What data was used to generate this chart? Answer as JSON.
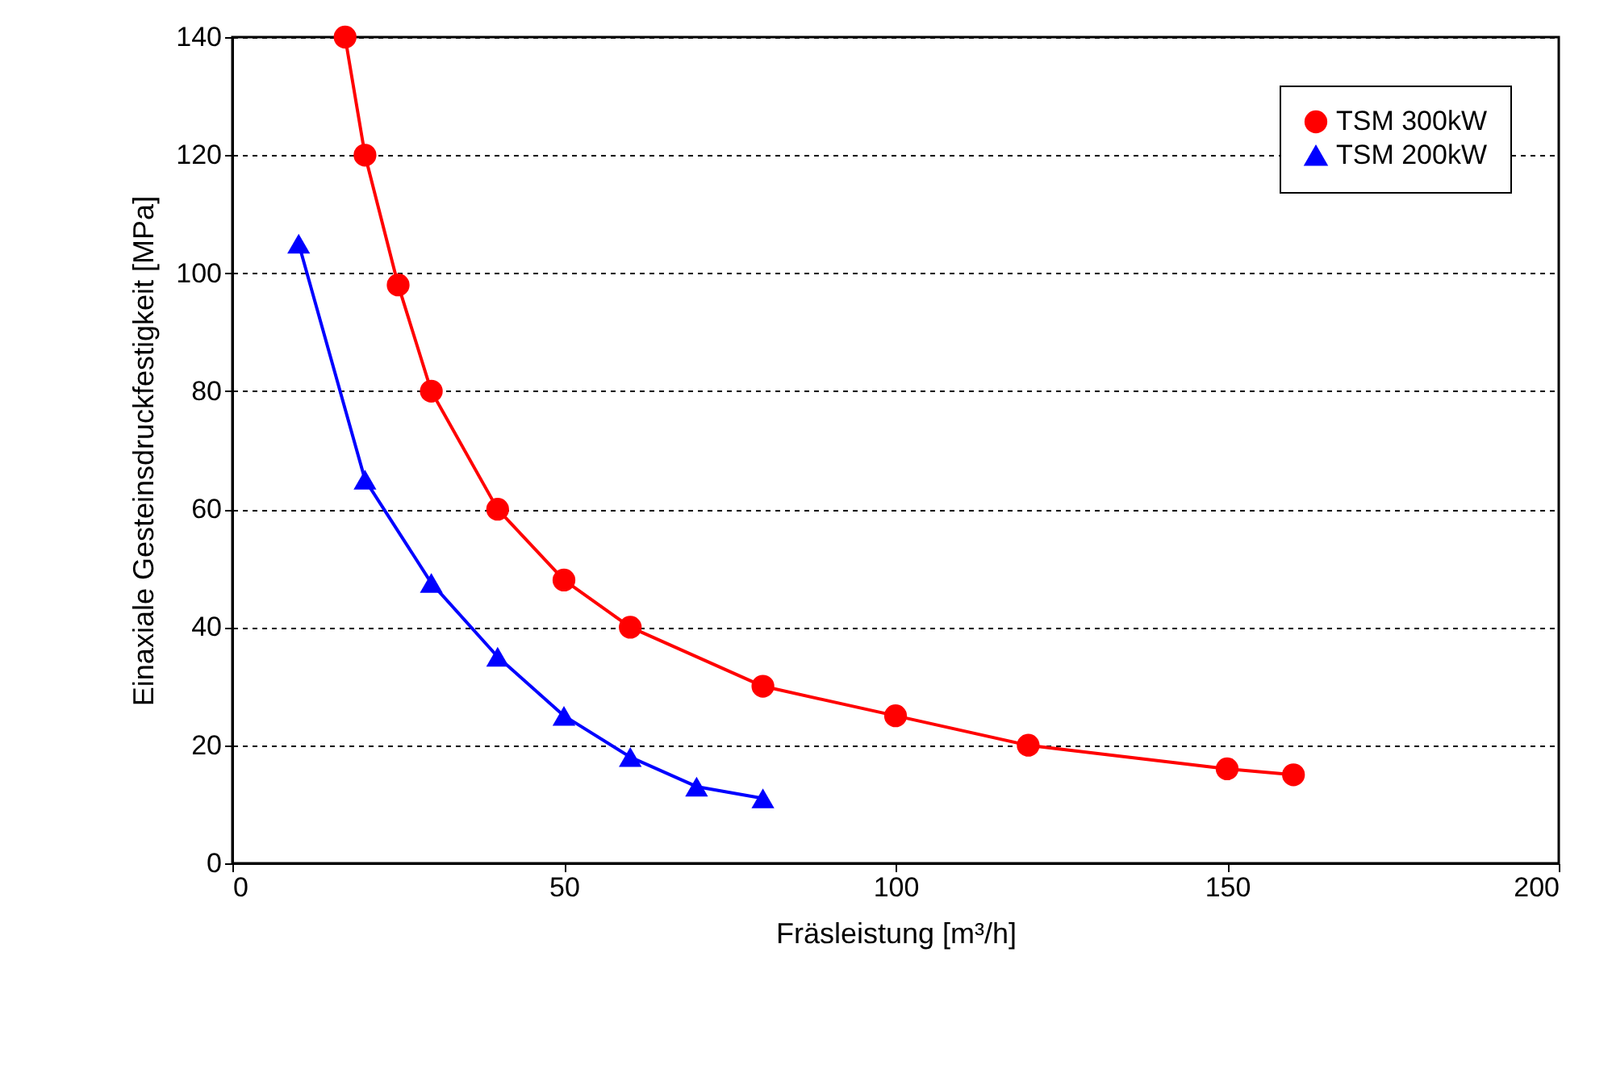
{
  "chart_data": {
    "type": "line",
    "xlabel": "Fräsleistung [m³/h]",
    "ylabel": "Einaxiale Gesteinsdruckfestigkeit [MPa]",
    "xlim": [
      0,
      200
    ],
    "xticks": [
      0,
      50,
      100,
      150,
      200
    ],
    "ylim": [
      0,
      140
    ],
    "yticks": [
      0,
      20,
      40,
      60,
      80,
      100,
      120,
      140
    ],
    "grid": "y",
    "legend": "top right",
    "line_style": "solid",
    "series": [
      {
        "name": "TSM 300kW",
        "color": "#ff0000",
        "marker": "circle",
        "x": [
          17,
          20,
          25,
          30,
          40,
          50,
          60,
          80,
          100,
          120,
          150,
          160
        ],
        "values": [
          140,
          120,
          98,
          80,
          60,
          48,
          40,
          30,
          25,
          20,
          16,
          15
        ]
      },
      {
        "name": "TSM 200kW",
        "color": "#0000ff",
        "marker": "triangle",
        "x": [
          10,
          20,
          30,
          40,
          50,
          60,
          70,
          80
        ],
        "values": [
          105,
          65,
          47.5,
          35,
          25,
          18,
          13,
          11
        ]
      }
    ]
  }
}
